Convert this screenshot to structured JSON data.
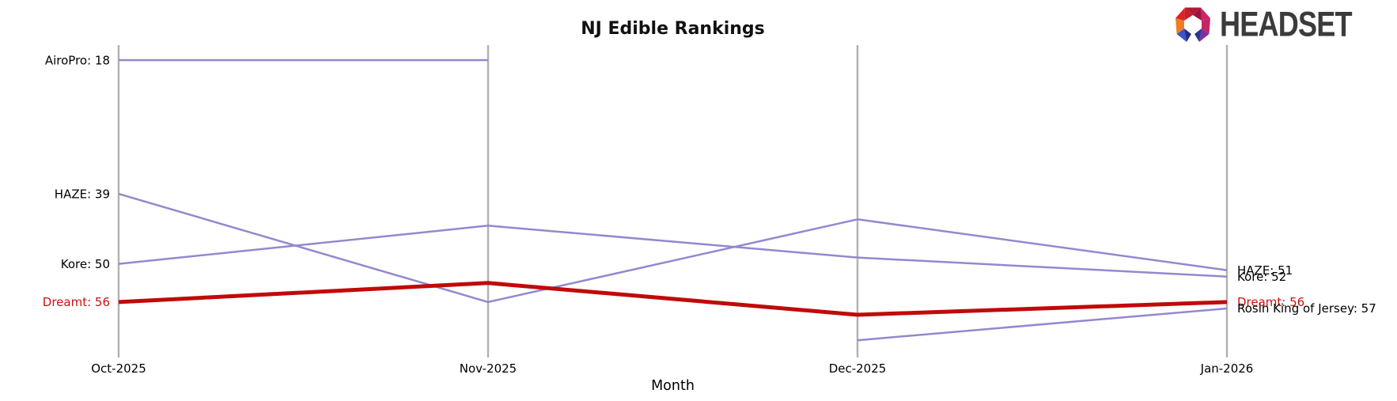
{
  "logo": {
    "text": "HEADSET"
  },
  "chart_data": {
    "type": "line",
    "title": "NJ Edible Rankings",
    "xlabel": "Month",
    "x_categories": [
      "Oct-2025",
      "Nov-2025",
      "Dec-2025",
      "Jan-2026"
    ],
    "y_axis_meaning": "brand ranking (lower number = higher position; vertical axis inverted)",
    "ylim": [
      16,
      64
    ],
    "legend_position": "none (series labeled at line endpoints)",
    "grid": "one vertical gray axis line per month",
    "series": [
      {
        "name": "AiroPro",
        "values": [
          18,
          18,
          null,
          null
        ],
        "color": "#9488cf",
        "emphasis": false,
        "label_left": "AiroPro: 18",
        "label_right": null,
        "label_color": "#000000"
      },
      {
        "name": "HAZE",
        "values": [
          39,
          56,
          43,
          51
        ],
        "color": "#9488cf",
        "emphasis": false,
        "label_left": "HAZE: 39",
        "label_right": "HAZE: 51",
        "label_color": "#000000"
      },
      {
        "name": "Kore",
        "values": [
          50,
          44,
          49,
          52
        ],
        "color": "#9488cf",
        "emphasis": false,
        "label_left": "Kore: 50",
        "label_right": "Kore: 52",
        "label_color": "#000000"
      },
      {
        "name": "Dreamt",
        "values": [
          56,
          53,
          58,
          56
        ],
        "color": "#c00a0a",
        "emphasis": true,
        "label_left": "Dreamt: 56",
        "label_right": "Dreamt: 56",
        "label_color": "#cc1111"
      },
      {
        "name": "Rosin King of Jersey",
        "values": [
          null,
          null,
          62,
          57
        ],
        "color": "#9488cf",
        "emphasis": false,
        "label_left": null,
        "label_right": "Rosin King of Jersey: 57",
        "label_color": "#000000"
      }
    ],
    "colors": {
      "axis": "#b3b3b3",
      "text": "#000000",
      "highlight": "#c00a0a",
      "line_default": "#9488cf"
    }
  }
}
